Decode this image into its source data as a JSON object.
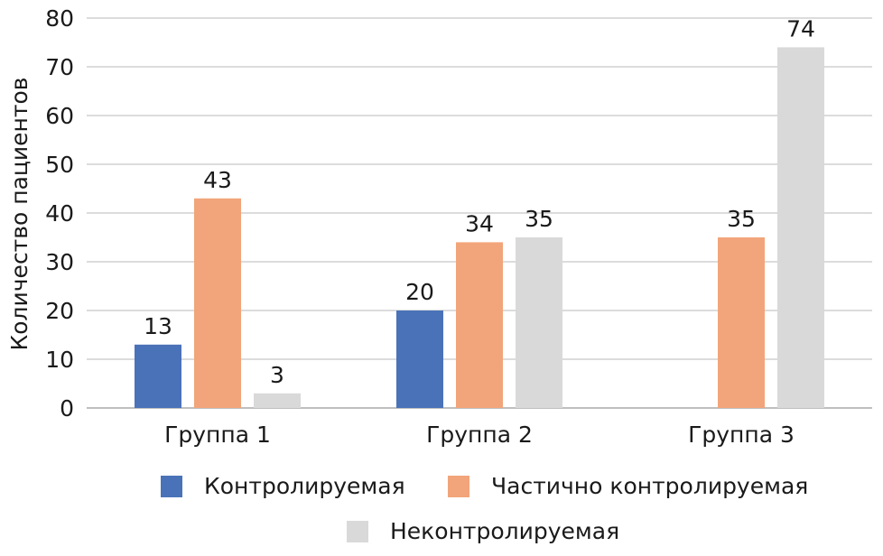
{
  "chart_data": {
    "type": "bar",
    "categories": [
      "Группа 1",
      "Группа 2",
      "Группа 3"
    ],
    "series": [
      {
        "name": "Контролируемая",
        "color": "#4a72b8",
        "values": [
          13,
          20,
          null
        ]
      },
      {
        "name": "Частично контролируемая",
        "color": "#f2a57a",
        "values": [
          43,
          34,
          35
        ]
      },
      {
        "name": "Неконтролируемая",
        "color": "#d9d9d9",
        "values": [
          3,
          35,
          74
        ]
      }
    ],
    "title": "",
    "xlabel": "",
    "ylabel": "Количество пациентов",
    "ylim": [
      0,
      80
    ],
    "yticks": [
      0,
      10,
      20,
      30,
      40,
      50,
      60,
      70,
      80
    ],
    "grid": true,
    "legend_position": "bottom",
    "gridline_color": "#d0d0d0",
    "axis_color": "#bfbfbf"
  }
}
